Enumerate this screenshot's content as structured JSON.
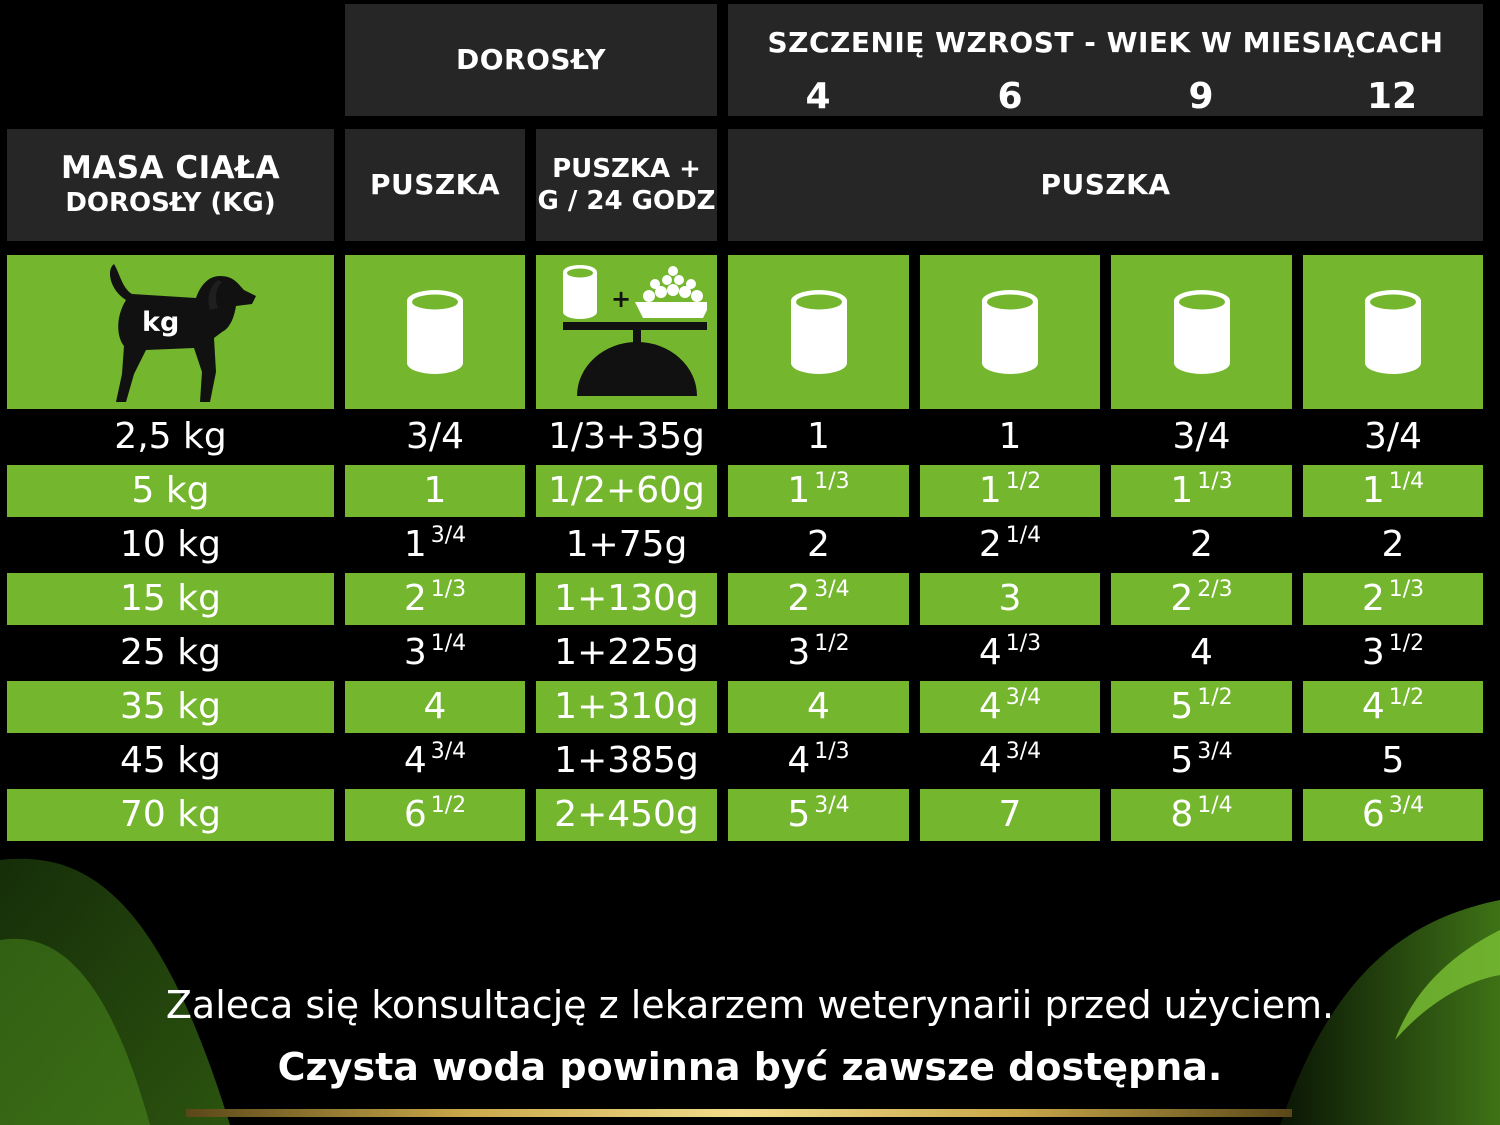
{
  "headers": {
    "adult_top": "DOROSŁY",
    "puppy_top": "SZCZENIĘ WZROST - WIEK W MIESIĄCACH",
    "puppy_months": [
      "4",
      "6",
      "9",
      "12"
    ],
    "weight_line1": "MASA CIAŁA",
    "weight_line2": "DOROSŁY (KG)",
    "adult_can": "PUSZKA",
    "adult_mix_line1": "PUSZKA +",
    "adult_mix_line2": "G / 24 GODZ",
    "puppy_can": "PUSZKA"
  },
  "icons": {
    "weight": "dog-kg-icon",
    "weight_label": "kg",
    "adult_can": "can-icon",
    "adult_mix": "can-plus-kibble-scale-icon",
    "puppy_cans": [
      "can-icon",
      "can-icon",
      "can-icon",
      "can-icon"
    ]
  },
  "colors": {
    "green": "#74b62d",
    "dark_cell": "#262626",
    "background": "#000000"
  },
  "rows": [
    {
      "weight": "2,5 kg",
      "cells": [
        [
          "3/4",
          ""
        ],
        [
          "1/3+35g",
          ""
        ],
        [
          "1",
          ""
        ],
        [
          "1",
          ""
        ],
        [
          "3/4",
          ""
        ],
        [
          "3/4",
          ""
        ]
      ]
    },
    {
      "weight": "5 kg",
      "cells": [
        [
          "1",
          ""
        ],
        [
          "1/2+60g",
          ""
        ],
        [
          "1",
          "1/3"
        ],
        [
          "1",
          "1/2"
        ],
        [
          "1",
          "1/3"
        ],
        [
          "1",
          "1/4"
        ]
      ]
    },
    {
      "weight": "10 kg",
      "cells": [
        [
          "1",
          "3/4"
        ],
        [
          "1+75g",
          ""
        ],
        [
          "2",
          ""
        ],
        [
          "2",
          "1/4"
        ],
        [
          "2",
          ""
        ],
        [
          "2",
          ""
        ]
      ]
    },
    {
      "weight": "15 kg",
      "cells": [
        [
          "2",
          "1/3"
        ],
        [
          "1+130g",
          ""
        ],
        [
          "2",
          "3/4"
        ],
        [
          "3",
          ""
        ],
        [
          "2",
          "2/3"
        ],
        [
          "2",
          "1/3"
        ]
      ]
    },
    {
      "weight": "25 kg",
      "cells": [
        [
          "3",
          "1/4"
        ],
        [
          "1+225g",
          ""
        ],
        [
          "3",
          "1/2"
        ],
        [
          "4",
          "1/3"
        ],
        [
          "4",
          ""
        ],
        [
          "3",
          "1/2"
        ]
      ]
    },
    {
      "weight": "35 kg",
      "cells": [
        [
          "4",
          ""
        ],
        [
          "1+310g",
          ""
        ],
        [
          "4",
          ""
        ],
        [
          "4",
          "3/4"
        ],
        [
          "5",
          "1/2"
        ],
        [
          "4",
          "1/2"
        ]
      ]
    },
    {
      "weight": "45 kg",
      "cells": [
        [
          "4",
          "3/4"
        ],
        [
          "1+385g",
          ""
        ],
        [
          "4",
          "1/3"
        ],
        [
          "4",
          "3/4"
        ],
        [
          "5",
          "3/4"
        ],
        [
          "5",
          ""
        ]
      ]
    },
    {
      "weight": "70 kg",
      "cells": [
        [
          "6",
          "1/2"
        ],
        [
          "2+450g",
          ""
        ],
        [
          "5",
          "3/4"
        ],
        [
          "7",
          ""
        ],
        [
          "8",
          "1/4"
        ],
        [
          "6",
          "3/4"
        ]
      ]
    }
  ],
  "footer": {
    "line1": "Zaleca się konsultację z lekarzem weterynarii przed użyciem.",
    "line2": "Czysta woda powinna być zawsze dostępna."
  }
}
